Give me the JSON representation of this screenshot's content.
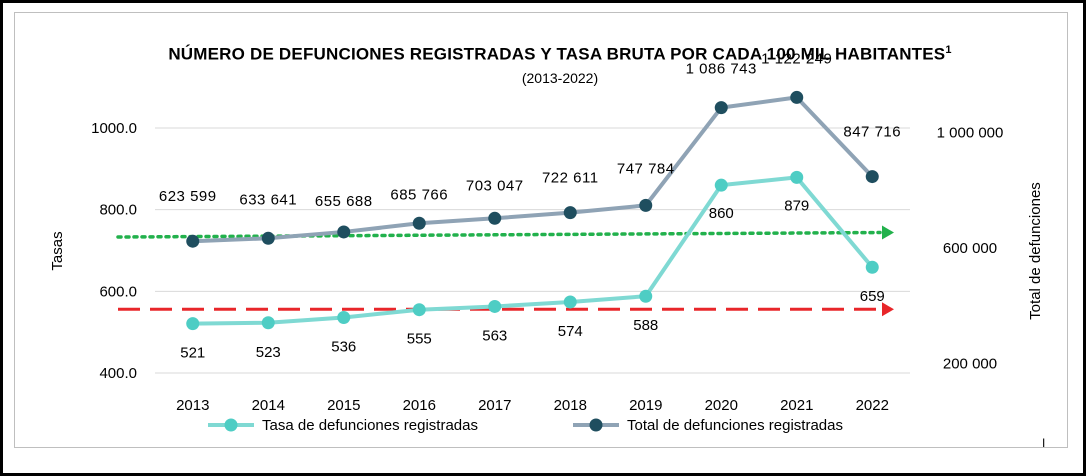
{
  "chart_data": {
    "type": "line",
    "title": "Número de defunciones registradas y tasa bruta por cada 100 mil habitantes",
    "title_footnote": "1",
    "subtitle": "(2013-2022)",
    "categories": [
      "2013",
      "2014",
      "2015",
      "2016",
      "2017",
      "2018",
      "2019",
      "2020",
      "2021",
      "2022"
    ],
    "left_axis": {
      "label": "Tasas",
      "range": [
        400,
        1000
      ],
      "ticks": [
        400,
        600,
        800,
        1000
      ],
      "tick_labels": [
        "400.0",
        "600.0",
        "800.0",
        "1000.0"
      ]
    },
    "right_axis": {
      "label": "Total de defunciones",
      "range": [
        0,
        1200000
      ],
      "ticks": [
        200000,
        600000,
        1000000
      ],
      "tick_labels": [
        "200 000",
        "600 000",
        "1 000 000"
      ]
    },
    "series": [
      {
        "name": "Tasa de defunciones registradas",
        "axis": "left",
        "color": "#7fd9d3",
        "marker_color": "#4ecdc4",
        "values": [
          521,
          523,
          536,
          555,
          563,
          574,
          588,
          860,
          879,
          659
        ],
        "labels": [
          "521",
          "523",
          "536",
          "555",
          "563",
          "574",
          "588",
          "860",
          "879",
          "659"
        ]
      },
      {
        "name": "Total de defunciones registradas",
        "axis": "right",
        "color": "#8fa3b5",
        "marker_color": "#1f4e5f",
        "values": [
          623599,
          633641,
          655688,
          685766,
          703047,
          722611,
          747784,
          1086743,
          1122249,
          847716
        ],
        "labels": [
          "623 599",
          "633 641",
          "655 688",
          "685 766",
          "703 047",
          "722 611",
          "747 784",
          "1 086 743",
          "1 122 249",
          "847 716"
        ]
      }
    ],
    "reference_lines": [
      {
        "name": "green-dotted-trend",
        "axis": "left",
        "from": 733,
        "to": 744,
        "color": "#22b14c",
        "style": "dotted"
      },
      {
        "name": "red-dashed-trend",
        "axis": "left",
        "from": 556,
        "to": 556,
        "color": "#e8262a",
        "style": "dashed"
      }
    ],
    "grid": "horizontal",
    "legend": "bottom"
  },
  "footer_mark": "I"
}
